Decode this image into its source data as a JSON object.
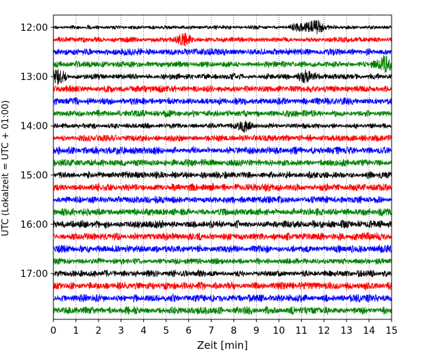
{
  "chart_data": {
    "type": "line",
    "title": "",
    "xlabel": "Zeit  [min]",
    "ylabel": "UTC (Lokalzeit = UTC + 01:00)",
    "xlim": [
      0,
      15
    ],
    "x_ticks": [
      "0",
      "1",
      "2",
      "3",
      "4",
      "5",
      "6",
      "7",
      "8",
      "9",
      "10",
      "11",
      "12",
      "13",
      "14",
      "15"
    ],
    "y_ticks": [
      {
        "label": "12:00",
        "trace_index": 0
      },
      {
        "label": "13:00",
        "trace_index": 4
      },
      {
        "label": "14:00",
        "trace_index": 8
      },
      {
        "label": "15:00",
        "trace_index": 12
      },
      {
        "label": "16:00",
        "trace_index": 16
      },
      {
        "label": "17:00",
        "trace_index": 20
      }
    ],
    "grid": "vertical-dotted",
    "series_colors": [
      "#000000",
      "#ff0000",
      "#0000ff",
      "#008000"
    ],
    "series": [
      {
        "name": "12:00",
        "color": "#000000",
        "amplitude": 0.25,
        "events": [
          {
            "t": 11.6,
            "amp": 1.1,
            "width": 0.6
          },
          {
            "t": 10.8,
            "amp": 0.5,
            "width": 0.5
          }
        ]
      },
      {
        "name": "12:15",
        "color": "#ff0000",
        "amplitude": 0.35,
        "events": [
          {
            "t": 5.8,
            "amp": 1.0,
            "width": 0.45
          }
        ]
      },
      {
        "name": "12:30",
        "color": "#0000ff",
        "amplitude": 0.45,
        "events": []
      },
      {
        "name": "12:45",
        "color": "#008000",
        "amplitude": 0.4,
        "events": [
          {
            "t": 14.7,
            "amp": 1.0,
            "width": 0.5
          }
        ]
      },
      {
        "name": "13:00",
        "color": "#000000",
        "amplitude": 0.4,
        "events": [
          {
            "t": 0.2,
            "amp": 1.0,
            "width": 0.4
          },
          {
            "t": 11.2,
            "amp": 0.75,
            "width": 0.5
          }
        ]
      },
      {
        "name": "13:15",
        "color": "#ff0000",
        "amplitude": 0.45,
        "events": []
      },
      {
        "name": "13:30",
        "color": "#0000ff",
        "amplitude": 0.45,
        "events": []
      },
      {
        "name": "13:45",
        "color": "#008000",
        "amplitude": 0.45,
        "events": []
      },
      {
        "name": "14:00",
        "color": "#000000",
        "amplitude": 0.35,
        "events": [
          {
            "t": 8.5,
            "amp": 0.75,
            "width": 0.5
          }
        ]
      },
      {
        "name": "14:15",
        "color": "#ff0000",
        "amplitude": 0.45,
        "events": []
      },
      {
        "name": "14:30",
        "color": "#0000ff",
        "amplitude": 0.5,
        "events": []
      },
      {
        "name": "14:45",
        "color": "#008000",
        "amplitude": 0.45,
        "events": []
      },
      {
        "name": "15:00",
        "color": "#000000",
        "amplitude": 0.45,
        "events": []
      },
      {
        "name": "15:15",
        "color": "#ff0000",
        "amplitude": 0.5,
        "events": []
      },
      {
        "name": "15:30",
        "color": "#0000ff",
        "amplitude": 0.45,
        "events": []
      },
      {
        "name": "15:45",
        "color": "#008000",
        "amplitude": 0.5,
        "events": []
      },
      {
        "name": "16:00",
        "color": "#000000",
        "amplitude": 0.5,
        "events": []
      },
      {
        "name": "16:15",
        "color": "#ff0000",
        "amplitude": 0.5,
        "events": []
      },
      {
        "name": "16:30",
        "color": "#0000ff",
        "amplitude": 0.5,
        "events": []
      },
      {
        "name": "16:45",
        "color": "#008000",
        "amplitude": 0.4,
        "events": []
      },
      {
        "name": "17:00",
        "color": "#000000",
        "amplitude": 0.45,
        "events": []
      },
      {
        "name": "17:15",
        "color": "#ff0000",
        "amplitude": 0.5,
        "events": []
      },
      {
        "name": "17:30",
        "color": "#0000ff",
        "amplitude": 0.5,
        "events": []
      },
      {
        "name": "17:45",
        "color": "#008000",
        "amplitude": 0.5,
        "events": []
      }
    ]
  }
}
